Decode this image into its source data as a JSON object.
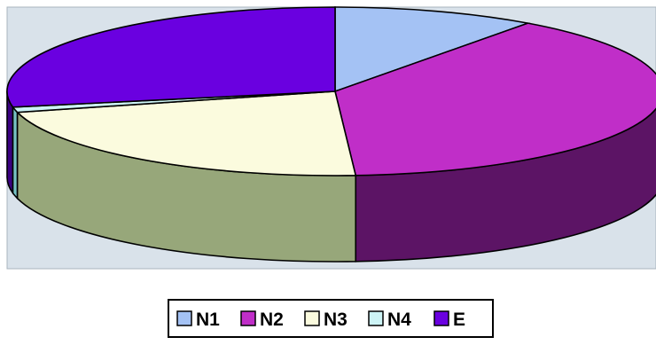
{
  "chart_data": {
    "type": "pie",
    "title": "",
    "categories": [
      "N1",
      "N2",
      "N3",
      "N4",
      "E"
    ],
    "values": [
      10,
      39,
      22,
      1,
      28
    ],
    "colors": {
      "N1": "#a4c2f4",
      "N2": "#c02ec8",
      "N3": "#fbfbde",
      "N4": "#cdf4f6",
      "E": "#6a00e0"
    },
    "side_colors": {
      "N1": "#6f86ad",
      "N2": "#5c1465",
      "N3": "#97a77a",
      "N4": "#77c2c4",
      "E": "#3a0080"
    },
    "three_d": true,
    "plot_background": "#d9e2ea",
    "legend_position": "bottom",
    "grid": false
  }
}
